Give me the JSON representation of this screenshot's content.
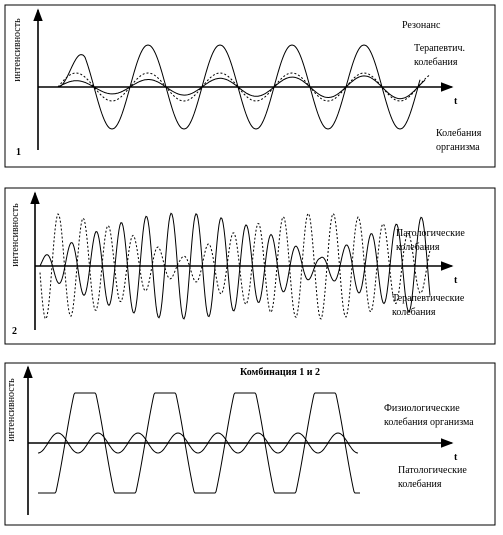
{
  "panels": [
    {
      "y_label": "интенсивность",
      "number": "1",
      "x_label": "t",
      "labels": [
        "Резонанс",
        "Терапевтич.",
        "колебания",
        "Колебания",
        "организма"
      ]
    },
    {
      "y_label": "интенсивность",
      "number": "2",
      "x_label": "t",
      "labels": [
        "Патологические",
        "колебания",
        "Терапевтические",
        "колебания"
      ]
    },
    {
      "y_label": "интенсивность",
      "title": "Комбинация 1 и 2",
      "x_label": "t",
      "labels": [
        "Физиологические",
        "колебания организма",
        "Патологические",
        "колебания"
      ]
    }
  ]
}
